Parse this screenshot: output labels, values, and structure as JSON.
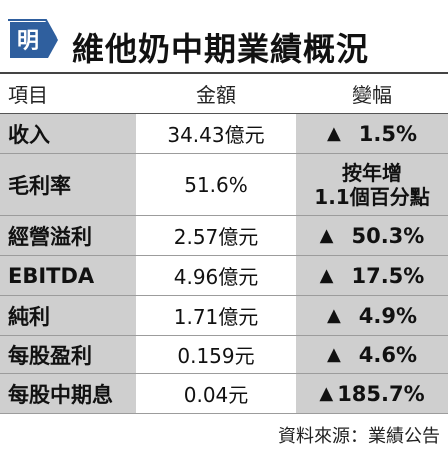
{
  "header": {
    "logo_char": "明",
    "title": "維他奶中期業績概況"
  },
  "table": {
    "columns": [
      "項目",
      "金額",
      "變幅"
    ],
    "rows": [
      {
        "item": "收入",
        "amount": "34.43億元",
        "arrow": "▲",
        "change": "1.5%"
      },
      {
        "item": "毛利率",
        "amount": "51.6%",
        "arrow": "",
        "change_lines": [
          "按年增",
          "1.1個百分點"
        ]
      },
      {
        "item": "經營溢利",
        "amount": "2.57億元",
        "arrow": "▲",
        "change": "50.3%"
      },
      {
        "item": "EBITDA",
        "amount": "4.96億元",
        "arrow": "▲",
        "change": "17.5%"
      },
      {
        "item": "純利",
        "amount": "1.71億元",
        "arrow": "▲",
        "change": "4.9%"
      },
      {
        "item": "每股盈利",
        "amount": "0.159元",
        "arrow": "▲",
        "change": "4.6%"
      },
      {
        "item": "每股中期息",
        "amount": "0.04元",
        "arrow": "▲",
        "change": "185.7%"
      }
    ]
  },
  "footer": {
    "source": "資料來源：業績公告"
  },
  "colors": {
    "logo_blue": "#2f5f9e",
    "row_shade": "#cfcfcf"
  }
}
